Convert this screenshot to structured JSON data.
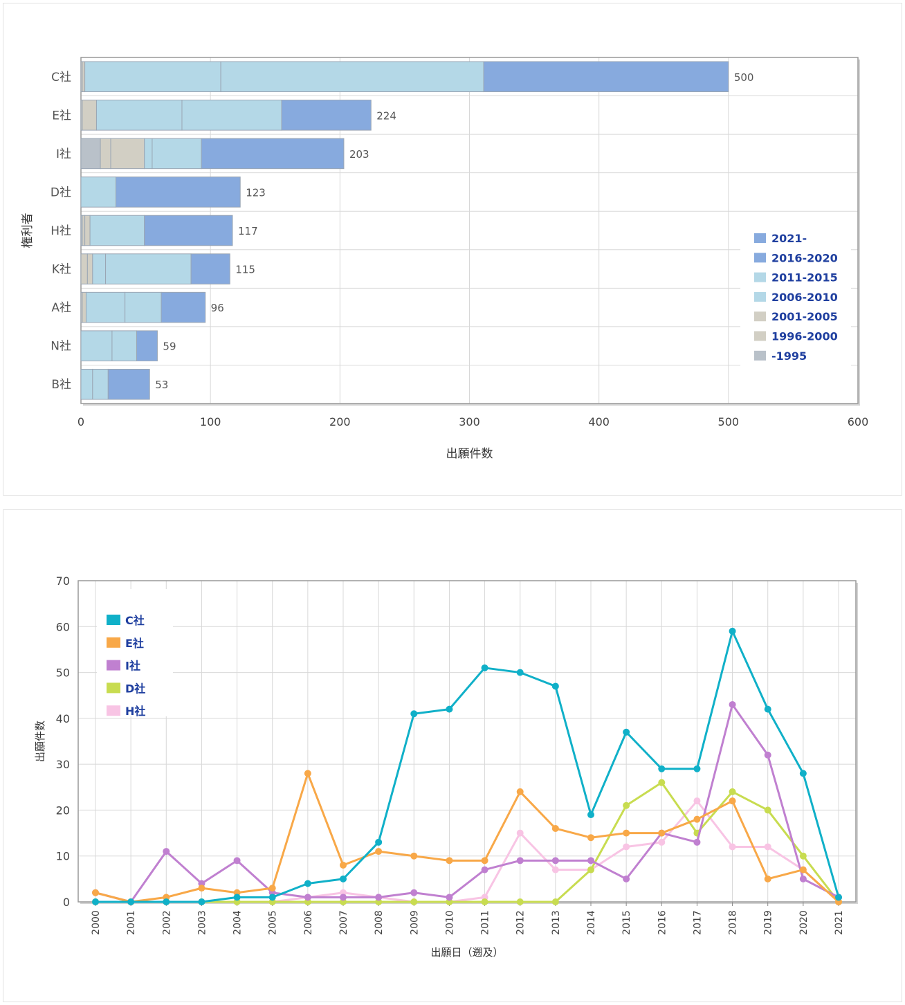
{
  "chart_data": [
    {
      "type": "bar",
      "orientation": "horizontal",
      "stacked": true,
      "ylabel": "権利者",
      "xlabel": "出願件数",
      "xlim": [
        0,
        600
      ],
      "xticks": [
        "0",
        "100",
        "200",
        "300",
        "400",
        "500",
        "600"
      ],
      "grid": true,
      "legend_position": "right",
      "categories": [
        "C社",
        "E社",
        "I社",
        "D社",
        "H社",
        "K社",
        "A社",
        "N社",
        "B社"
      ],
      "totals": [
        "500",
        "224",
        "203",
        "123",
        "117",
        "115",
        "96",
        "59",
        "53"
      ],
      "series": [
        {
          "name": "-1995",
          "color": "#b9c1c9",
          "values": [
            0,
            0,
            15,
            0,
            1,
            0,
            0,
            0,
            0
          ]
        },
        {
          "name": "1996-2000",
          "color": "#d2cfc4",
          "values": [
            1,
            1,
            8,
            0,
            2,
            5,
            1,
            0,
            0
          ]
        },
        {
          "name": "2001-2005",
          "color": "#d2cfc4",
          "values": [
            2,
            11,
            26,
            0,
            4,
            4,
            3,
            0,
            0
          ]
        },
        {
          "name": "2006-2010",
          "color": "#b4d8e7",
          "values": [
            105,
            66,
            6,
            0,
            0,
            10,
            30,
            24,
            9
          ]
        },
        {
          "name": "2011-2015",
          "color": "#b4d8e7",
          "values": [
            203,
            77,
            38,
            27,
            42,
            66,
            28,
            19,
            12
          ]
        },
        {
          "name": "2016-2020",
          "color": "#87aade",
          "values": [
            189,
            69,
            110,
            96,
            68,
            30,
            34,
            16,
            32
          ]
        },
        {
          "name": "2021-",
          "color": "#87aade",
          "values": [
            0,
            0,
            0,
            0,
            0,
            0,
            0,
            0,
            0
          ]
        }
      ],
      "legend_order": [
        "2021-",
        "2016-2020",
        "2011-2015",
        "2006-2010",
        "2001-2005",
        "1996-2000",
        "-1995"
      ]
    },
    {
      "type": "line",
      "ylabel": "出願件数",
      "xlabel": "出願日（遡及）",
      "ylim": [
        0,
        70
      ],
      "yticks": [
        "0",
        "10",
        "20",
        "30",
        "40",
        "50",
        "60",
        "70"
      ],
      "grid": true,
      "legend_position": "top-left",
      "x": [
        "2000",
        "2001",
        "2002",
        "2003",
        "2004",
        "2005",
        "2006",
        "2007",
        "2008",
        "2009",
        "2010",
        "2011",
        "2012",
        "2013",
        "2014",
        "2015",
        "2016",
        "2017",
        "2018",
        "2019",
        "2020",
        "2021"
      ],
      "series": [
        {
          "name": "H社",
          "color": "#f8c4e4",
          "values": [
            0,
            0,
            0,
            0,
            0,
            0,
            1,
            2,
            1,
            0,
            0,
            1,
            15,
            7,
            7,
            12,
            13,
            22,
            12,
            12,
            7,
            0
          ]
        },
        {
          "name": "D社",
          "color": "#c8dc50",
          "values": [
            0,
            0,
            0,
            0,
            0,
            0,
            0,
            0,
            0,
            0,
            0,
            0,
            0,
            0,
            7,
            21,
            26,
            15,
            24,
            20,
            10,
            0
          ]
        },
        {
          "name": "I社",
          "color": "#c080d0",
          "values": [
            2,
            0,
            11,
            4,
            9,
            2,
            1,
            1,
            1,
            2,
            1,
            7,
            9,
            9,
            9,
            5,
            15,
            13,
            43,
            32,
            5,
            1
          ]
        },
        {
          "name": "E社",
          "color": "#f8a848",
          "values": [
            2,
            0,
            1,
            3,
            2,
            3,
            28,
            8,
            11,
            10,
            9,
            9,
            24,
            16,
            14,
            15,
            15,
            18,
            22,
            5,
            7,
            0
          ]
        },
        {
          "name": "C社",
          "color": "#10b0c8",
          "values": [
            0,
            0,
            0,
            0,
            1,
            1,
            4,
            5,
            13,
            41,
            42,
            51,
            50,
            47,
            19,
            37,
            29,
            29,
            59,
            42,
            28,
            1
          ]
        }
      ],
      "legend_order": [
        "C社",
        "E社",
        "I社",
        "D社",
        "H社"
      ]
    }
  ]
}
